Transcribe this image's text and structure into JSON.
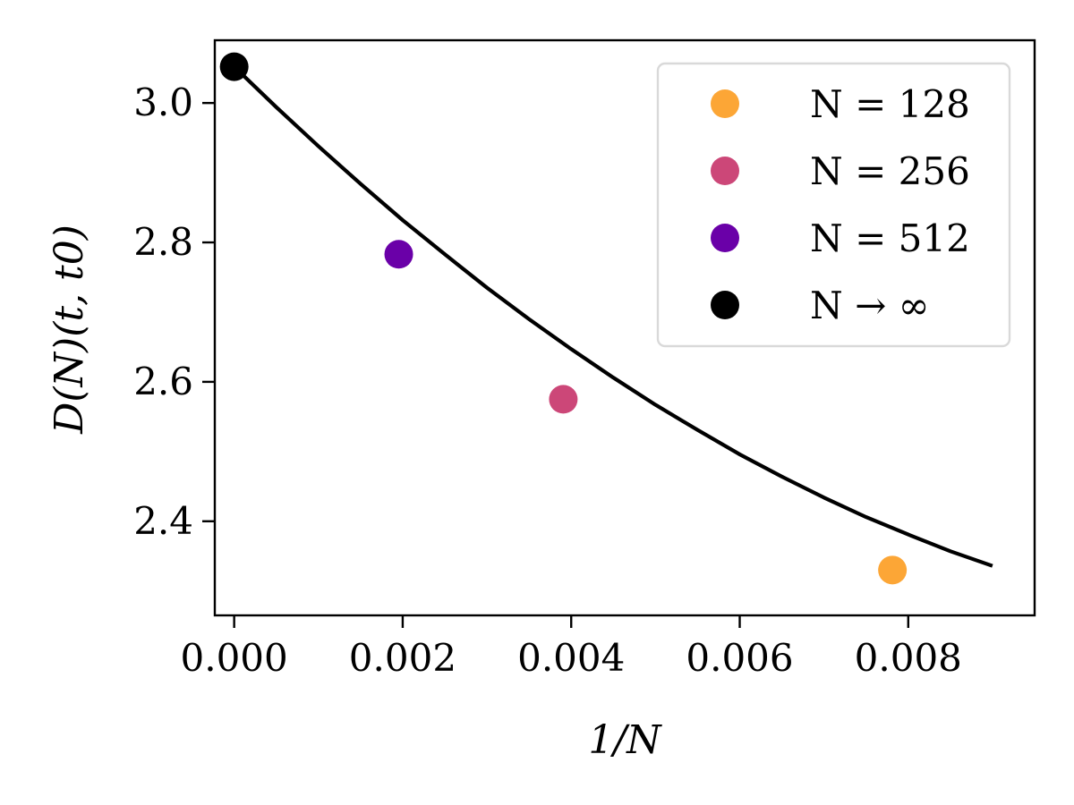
{
  "chart_data": {
    "type": "scatter",
    "xlabel": "1/N",
    "ylabel": "D(N)(t, t0)",
    "xlim": [
      -0.00023,
      0.0095
    ],
    "ylim": [
      2.265,
      3.09
    ],
    "x_ticks": [
      0.0,
      0.002,
      0.004,
      0.006,
      0.008
    ],
    "x_tick_labels": [
      "0.000",
      "0.002",
      "0.004",
      "0.006",
      "0.008"
    ],
    "y_ticks": [
      2.4,
      2.6,
      2.8,
      3.0
    ],
    "y_tick_labels": [
      "2.4",
      "2.6",
      "2.8",
      "3.0"
    ],
    "grid": false,
    "legend_position": "top-right",
    "series": [
      {
        "name": "N = 128",
        "color": "#fca636",
        "x": [
          0.0078125
        ],
        "y": [
          2.33
        ]
      },
      {
        "name": "N = 256",
        "color": "#cc4778",
        "x": [
          0.00390625
        ],
        "y": [
          2.575
        ]
      },
      {
        "name": "N = 512",
        "color": "#6a00a8",
        "x": [
          0.001953125
        ],
        "y": [
          2.783
        ]
      },
      {
        "name": "N → ∞",
        "color": "#000000",
        "x": [
          0.0
        ],
        "y": [
          3.052
        ]
      }
    ],
    "fit_curve": {
      "color": "#000000",
      "x": [
        0.0,
        0.0005,
        0.001,
        0.0015,
        0.002,
        0.0025,
        0.003,
        0.0035,
        0.004,
        0.0045,
        0.005,
        0.0055,
        0.006,
        0.0065,
        0.007,
        0.0075,
        0.008,
        0.0085,
        0.009
      ],
      "y": [
        3.052,
        2.994,
        2.938,
        2.884,
        2.832,
        2.783,
        2.735,
        2.69,
        2.647,
        2.606,
        2.567,
        2.531,
        2.496,
        2.464,
        2.434,
        2.406,
        2.381,
        2.357,
        2.336
      ]
    }
  }
}
